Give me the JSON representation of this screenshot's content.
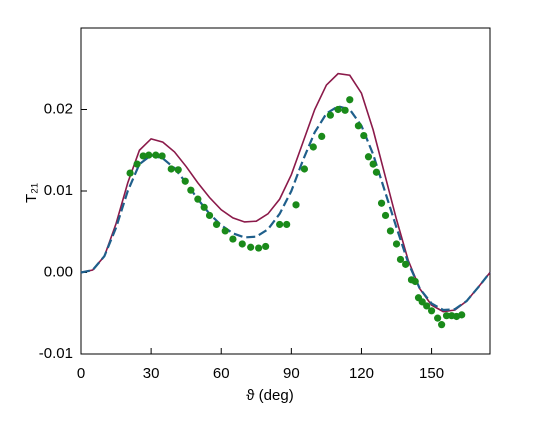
{
  "chart_data": {
    "type": "line",
    "xlabel": "ϑ  (deg)",
    "ylabel": "T₂₁",
    "xlim": [
      0,
      175
    ],
    "ylim": [
      -0.01,
      0.03
    ],
    "xticks": [
      0,
      30,
      60,
      90,
      120,
      150
    ],
    "yticks": [
      -0.01,
      {
        "value": 0,
        "label": "0.00"
      },
      0.01,
      0.02
    ],
    "series": [
      {
        "mode": "line",
        "dash": "solid",
        "color": "#8b1a4a",
        "x": [
          0,
          5,
          10,
          15,
          20,
          25,
          30,
          35,
          40,
          45,
          50,
          55,
          60,
          65,
          70,
          75,
          80,
          85,
          90,
          95,
          100,
          105,
          110,
          115,
          120,
          125,
          130,
          135,
          140,
          145,
          150,
          155,
          160,
          165,
          170,
          175
        ],
        "values": [
          0,
          0.0003,
          0.002,
          0.006,
          0.011,
          0.015,
          0.0164,
          0.016,
          0.0148,
          0.013,
          0.011,
          0.0092,
          0.0077,
          0.0067,
          0.0062,
          0.0063,
          0.0072,
          0.009,
          0.012,
          0.016,
          0.02,
          0.023,
          0.0244,
          0.0242,
          0.022,
          0.0175,
          0.012,
          0.0065,
          0.0015,
          -0.002,
          -0.004,
          -0.0048,
          -0.0046,
          -0.0035,
          -0.0018,
          0
        ]
      },
      {
        "mode": "line",
        "dash": "dashed",
        "color": "#1f5f8b",
        "x": [
          0,
          5,
          10,
          15,
          20,
          25,
          30,
          35,
          40,
          45,
          50,
          55,
          60,
          65,
          70,
          75,
          80,
          85,
          90,
          95,
          100,
          105,
          110,
          115,
          120,
          125,
          130,
          135,
          140,
          145,
          150,
          155,
          160,
          165,
          170,
          175
        ],
        "values": [
          0,
          0.0003,
          0.002,
          0.0055,
          0.01,
          0.0133,
          0.0144,
          0.014,
          0.0128,
          0.011,
          0.009,
          0.0072,
          0.0058,
          0.0048,
          0.0043,
          0.0044,
          0.0053,
          0.0072,
          0.01,
          0.0138,
          0.0172,
          0.0195,
          0.0204,
          0.02,
          0.018,
          0.0145,
          0.01,
          0.0055,
          0.0012,
          -0.002,
          -0.0038,
          -0.0046,
          -0.0045,
          -0.0035,
          -0.0018,
          0
        ]
      },
      {
        "mode": "markers",
        "color": "#1a8a1a",
        "x": [
          21,
          24,
          26.6,
          29,
          32,
          34.7,
          38.6,
          41.6,
          44.6,
          47,
          50,
          52.7,
          55,
          58,
          61.7,
          65,
          69,
          72.6,
          76,
          79,
          85,
          88,
          92,
          95.6,
          99.4,
          103,
          106.7,
          110,
          113,
          115,
          118.7,
          121,
          123,
          125,
          126.4,
          128.6,
          130.3,
          132.4,
          135,
          136.7,
          138.9,
          141.4,
          143,
          144.4,
          146,
          147.9,
          150,
          152.6,
          154.3,
          156.4,
          158.6,
          160.7,
          162.9
        ],
        "values": [
          0.0122,
          0.0133,
          0.0143,
          0.0144,
          0.0144,
          0.0143,
          0.0127,
          0.0126,
          0.0112,
          0.0101,
          0.009,
          0.008,
          0.007,
          0.0059,
          0.0051,
          0.0041,
          0.0035,
          0.0031,
          0.003,
          0.0032,
          0.0059,
          0.0059,
          0.0083,
          0.0127,
          0.0154,
          0.0167,
          0.0193,
          0.02,
          0.0199,
          0.0212,
          0.018,
          0.0168,
          0.0142,
          0.0133,
          0.0123,
          0.0085,
          0.007,
          0.0051,
          0.0035,
          0.0016,
          0.001,
          -0.0009,
          -0.0011,
          -0.0031,
          -0.0036,
          -0.0041,
          -0.0047,
          -0.0056,
          -0.0064,
          -0.0053,
          -0.0053,
          -0.0054,
          -0.0052
        ]
      }
    ]
  }
}
